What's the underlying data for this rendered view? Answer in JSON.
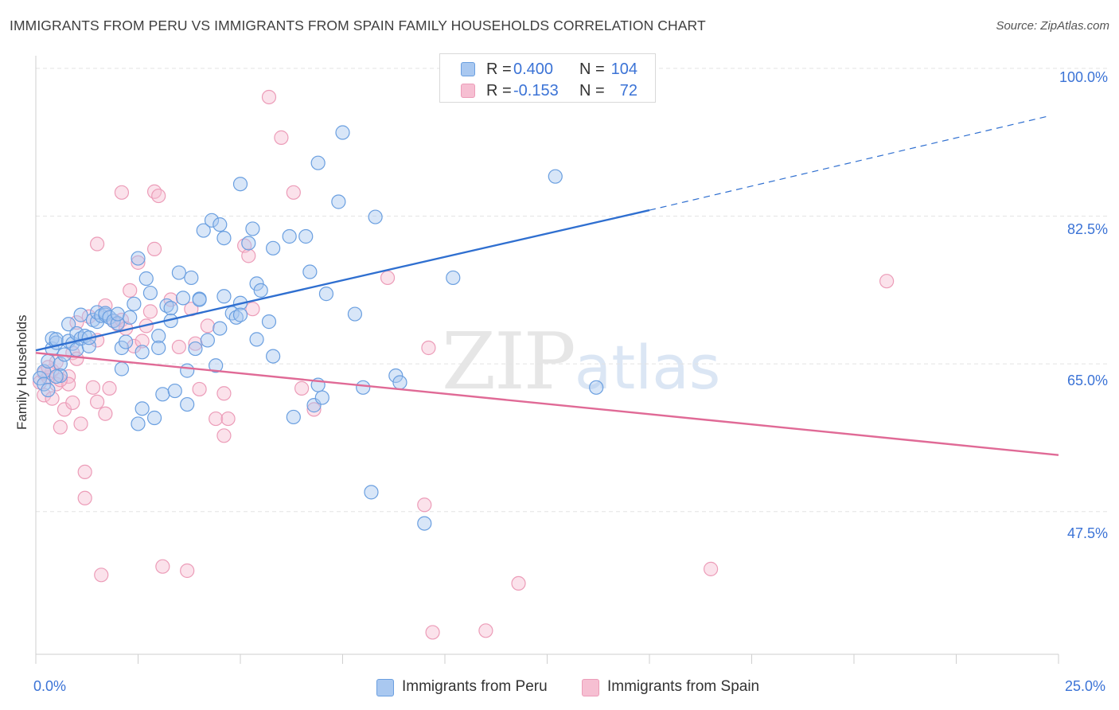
{
  "title": "IMMIGRANTS FROM PERU VS IMMIGRANTS FROM SPAIN FAMILY HOUSEHOLDS CORRELATION CHART",
  "source": "Source: ZipAtlas.com",
  "watermark": {
    "zip": "ZIP",
    "atlas": "atlas"
  },
  "legend_top": {
    "rows": [
      {
        "r_label": "R =",
        "r_value": "0.400",
        "n_label": "N =",
        "n_value": "104"
      },
      {
        "r_label": "R =",
        "r_value": "-0.153",
        "n_label": "N =",
        "n_value": "72"
      }
    ]
  },
  "legend_bottom": {
    "items": [
      "Immigrants from Peru",
      "Immigrants from Spain"
    ]
  },
  "colors": {
    "peru_fill": "#a9c8f0",
    "peru_stroke": "#6a9fe0",
    "peru_line": "#2f6fd0",
    "spain_fill": "#f6bfd2",
    "spain_stroke": "#ec9cb8",
    "spain_line": "#e06a96",
    "tick_text": "#3b73d6",
    "grid": "#e3e3e3"
  },
  "chart_data": {
    "type": "scatter",
    "title": "IMMIGRANTS FROM PERU VS IMMIGRANTS FROM SPAIN FAMILY HOUSEHOLDS CORRELATION CHART",
    "xlabel": "",
    "ylabel": "Family Households",
    "xlim": [
      0,
      25
    ],
    "ylim": [
      30.6,
      101.5
    ],
    "x_tick_labels": [
      "0.0%",
      "25.0%"
    ],
    "y_ticks": [
      47.5,
      65.0,
      82.5,
      100.0
    ],
    "y_tick_labels": [
      "47.5%",
      "65.0%",
      "82.5%",
      "100.0%"
    ],
    "grid": true,
    "legend_position": "top-center",
    "series": [
      {
        "name": "Immigrants from Peru",
        "r": 0.4,
        "n": 104,
        "trend": {
          "x_start": 0,
          "y_start": 66.6,
          "x_solid_end": 15,
          "y_solid_end": 83.2,
          "x_end": 24.8,
          "y_end": 94.4
        },
        "points": [
          [
            0.2,
            64.1
          ],
          [
            0.3,
            65.3
          ],
          [
            0.4,
            66.8
          ],
          [
            0.4,
            68.0
          ],
          [
            0.5,
            67.5
          ],
          [
            0.5,
            67.9
          ],
          [
            0.6,
            65.0
          ],
          [
            0.6,
            63.6
          ],
          [
            0.7,
            66.1
          ],
          [
            0.8,
            69.7
          ],
          [
            0.8,
            67.7
          ],
          [
            0.9,
            67.4
          ],
          [
            1.0,
            66.7
          ],
          [
            1.0,
            68.6
          ],
          [
            1.1,
            70.8
          ],
          [
            1.1,
            68.0
          ],
          [
            1.2,
            68.3
          ],
          [
            1.3,
            67.1
          ],
          [
            1.3,
            68.1
          ],
          [
            1.4,
            70.2
          ],
          [
            1.5,
            70.0
          ],
          [
            1.5,
            71.1
          ],
          [
            1.6,
            70.7
          ],
          [
            1.7,
            70.8
          ],
          [
            1.7,
            71.0
          ],
          [
            1.8,
            70.5
          ],
          [
            1.9,
            70.1
          ],
          [
            2.0,
            69.8
          ],
          [
            2.0,
            70.9
          ],
          [
            2.1,
            66.9
          ],
          [
            2.1,
            64.4
          ],
          [
            2.2,
            67.6
          ],
          [
            2.3,
            70.5
          ],
          [
            2.4,
            72.1
          ],
          [
            2.5,
            77.5
          ],
          [
            2.5,
            57.9
          ],
          [
            2.6,
            66.4
          ],
          [
            2.6,
            59.7
          ],
          [
            2.7,
            75.1
          ],
          [
            2.8,
            73.4
          ],
          [
            2.9,
            58.6
          ],
          [
            3.0,
            68.3
          ],
          [
            3.0,
            66.9
          ],
          [
            3.1,
            61.4
          ],
          [
            3.2,
            71.9
          ],
          [
            3.3,
            71.6
          ],
          [
            3.3,
            70.1
          ],
          [
            3.4,
            61.8
          ],
          [
            3.5,
            75.8
          ],
          [
            3.6,
            72.8
          ],
          [
            3.7,
            64.2
          ],
          [
            3.7,
            60.2
          ],
          [
            3.8,
            75.2
          ],
          [
            3.9,
            66.8
          ],
          [
            4.0,
            72.7
          ],
          [
            4.0,
            72.6
          ],
          [
            4.1,
            80.8
          ],
          [
            4.2,
            67.8
          ],
          [
            4.3,
            82.0
          ],
          [
            4.4,
            64.8
          ],
          [
            4.5,
            69.2
          ],
          [
            4.5,
            81.5
          ],
          [
            4.6,
            73.0
          ],
          [
            4.6,
            79.9
          ],
          [
            4.8,
            71.0
          ],
          [
            4.9,
            70.5
          ],
          [
            5.0,
            72.2
          ],
          [
            5.0,
            70.8
          ],
          [
            5.0,
            86.3
          ],
          [
            5.2,
            79.3
          ],
          [
            5.3,
            81.0
          ],
          [
            5.4,
            67.9
          ],
          [
            5.4,
            74.5
          ],
          [
            5.5,
            73.7
          ],
          [
            5.7,
            70.0
          ],
          [
            5.8,
            78.7
          ],
          [
            5.8,
            65.9
          ],
          [
            6.2,
            80.1
          ],
          [
            6.3,
            58.7
          ],
          [
            6.6,
            80.1
          ],
          [
            6.7,
            75.9
          ],
          [
            6.8,
            60.1
          ],
          [
            6.9,
            62.5
          ],
          [
            6.9,
            88.8
          ],
          [
            7.0,
            61.0
          ],
          [
            7.1,
            73.3
          ],
          [
            7.4,
            84.2
          ],
          [
            7.5,
            92.4
          ],
          [
            7.8,
            70.9
          ],
          [
            8.0,
            62.2
          ],
          [
            8.2,
            49.8
          ],
          [
            8.3,
            82.4
          ],
          [
            8.8,
            63.6
          ],
          [
            8.9,
            62.8
          ],
          [
            9.5,
            46.1
          ],
          [
            10.2,
            75.2
          ],
          [
            12.7,
            87.2
          ],
          [
            13.7,
            62.2
          ],
          [
            12.6,
            100.0
          ],
          [
            14.7,
            100.0
          ],
          [
            0.1,
            63.3
          ],
          [
            0.2,
            62.6
          ],
          [
            0.3,
            61.9
          ],
          [
            0.5,
            63.5
          ]
        ]
      },
      {
        "name": "Immigrants from Spain",
        "r": -0.153,
        "n": 72,
        "trend": {
          "x_start": 0,
          "y_start": 66.3,
          "x_end": 25,
          "y_end": 54.2
        },
        "points": [
          [
            0.1,
            62.8
          ],
          [
            0.2,
            61.3
          ],
          [
            0.3,
            63.4
          ],
          [
            0.4,
            60.9
          ],
          [
            0.4,
            64.2
          ],
          [
            0.5,
            62.6
          ],
          [
            0.5,
            65.2
          ],
          [
            0.6,
            57.5
          ],
          [
            0.7,
            59.6
          ],
          [
            0.8,
            63.5
          ],
          [
            0.8,
            62.6
          ],
          [
            0.9,
            60.4
          ],
          [
            0.9,
            66.3
          ],
          [
            1.0,
            65.6
          ],
          [
            1.0,
            69.9
          ],
          [
            1.1,
            57.9
          ],
          [
            1.2,
            52.2
          ],
          [
            1.2,
            49.1
          ],
          [
            1.3,
            70.6
          ],
          [
            1.4,
            62.2
          ],
          [
            1.5,
            60.5
          ],
          [
            1.5,
            67.8
          ],
          [
            1.5,
            79.2
          ],
          [
            1.6,
            40.0
          ],
          [
            1.7,
            71.9
          ],
          [
            1.7,
            59.1
          ],
          [
            1.8,
            62.1
          ],
          [
            1.9,
            70.1
          ],
          [
            2.0,
            69.7
          ],
          [
            2.1,
            70.2
          ],
          [
            2.1,
            85.3
          ],
          [
            2.2,
            69.2
          ],
          [
            2.3,
            73.7
          ],
          [
            2.4,
            67.1
          ],
          [
            2.5,
            77.0
          ],
          [
            2.6,
            67.7
          ],
          [
            2.7,
            69.5
          ],
          [
            2.8,
            71.2
          ],
          [
            2.9,
            78.6
          ],
          [
            2.9,
            85.4
          ],
          [
            3.0,
            84.9
          ],
          [
            3.1,
            41.0
          ],
          [
            3.3,
            72.6
          ],
          [
            3.5,
            67.0
          ],
          [
            3.7,
            40.5
          ],
          [
            3.8,
            71.5
          ],
          [
            3.9,
            67.4
          ],
          [
            4.0,
            62.0
          ],
          [
            4.2,
            69.5
          ],
          [
            4.4,
            58.5
          ],
          [
            4.6,
            56.5
          ],
          [
            4.6,
            61.5
          ],
          [
            4.7,
            58.5
          ],
          [
            5.1,
            79.0
          ],
          [
            5.2,
            77.8
          ],
          [
            5.3,
            71.5
          ],
          [
            5.7,
            96.6
          ],
          [
            6.0,
            91.8
          ],
          [
            6.3,
            85.3
          ],
          [
            6.5,
            62.1
          ],
          [
            6.8,
            59.6
          ],
          [
            8.6,
            75.2
          ],
          [
            9.5,
            48.3
          ],
          [
            9.6,
            66.9
          ],
          [
            9.7,
            33.2
          ],
          [
            11.0,
            33.4
          ],
          [
            11.8,
            39.0
          ],
          [
            20.8,
            74.8
          ],
          [
            16.5,
            40.7
          ],
          [
            0.2,
            63.9
          ],
          [
            0.3,
            64.6
          ],
          [
            0.6,
            63.1
          ]
        ]
      }
    ]
  }
}
